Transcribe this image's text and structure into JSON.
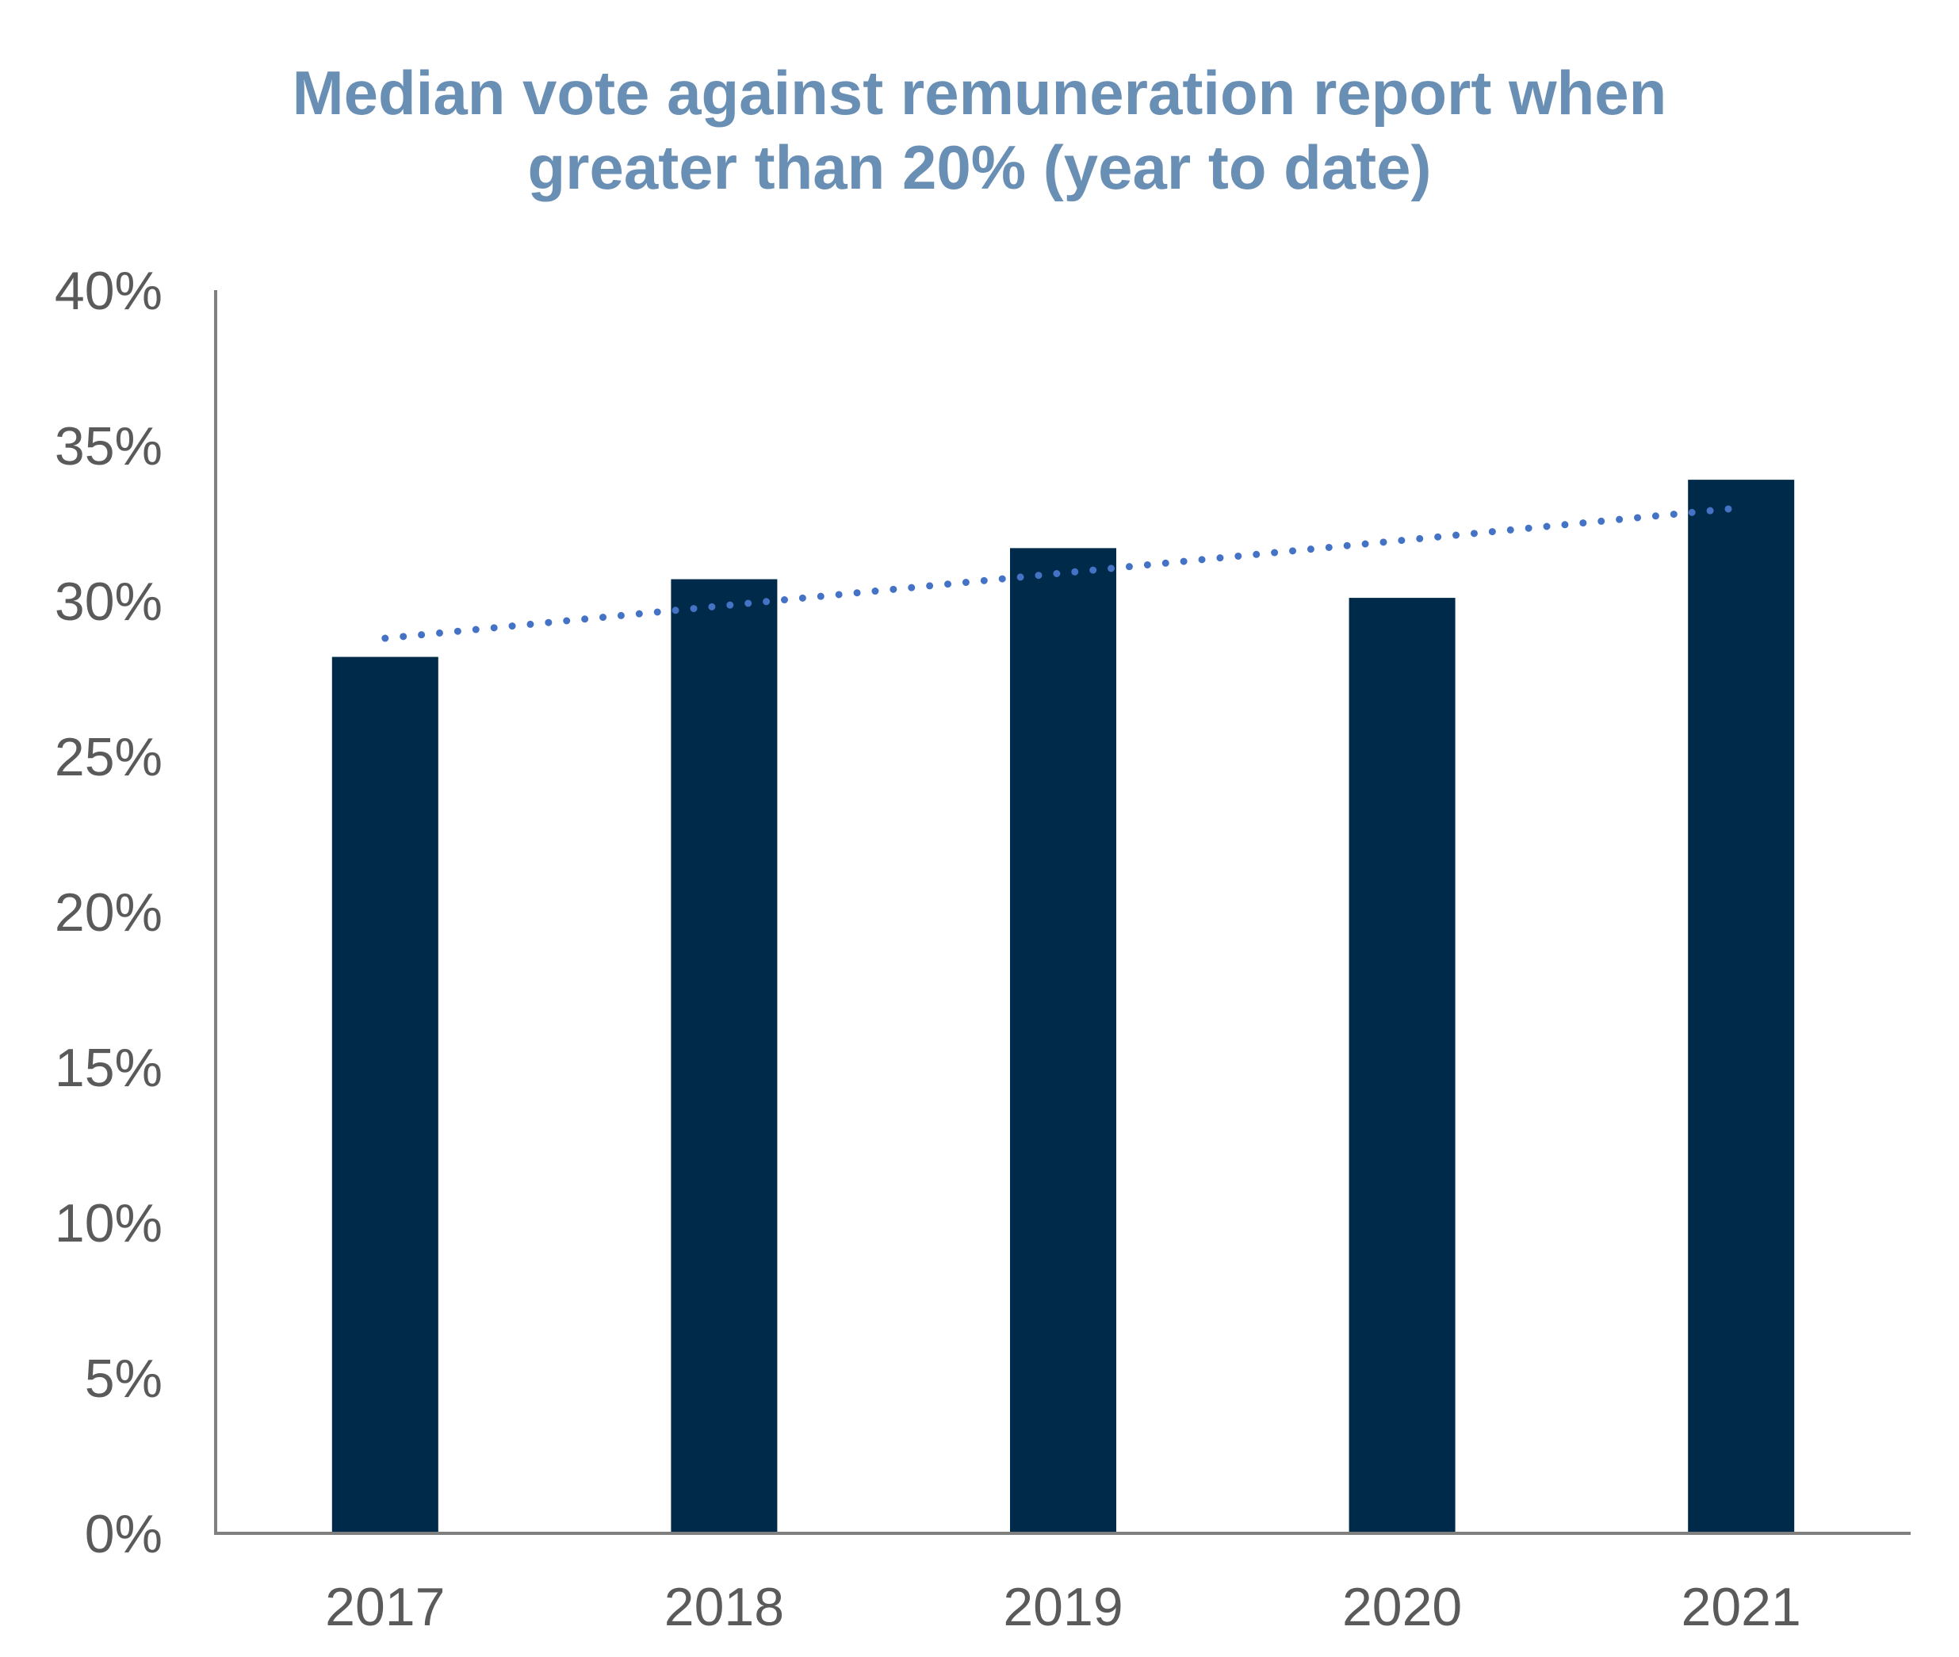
{
  "chart_data": {
    "type": "bar",
    "title": "Median vote against remuneration report when greater than 20% (year to date)",
    "title_lines": [
      "Median vote against remuneration report when",
      "greater than 20% (year to date)"
    ],
    "categories": [
      "2017",
      "2018",
      "2019",
      "2020",
      "2021"
    ],
    "values": [
      28.2,
      30.7,
      31.7,
      30.1,
      33.9
    ],
    "xlabel": "",
    "ylabel": "",
    "ylim": [
      0,
      40
    ],
    "yticks": [
      0,
      5,
      10,
      15,
      20,
      25,
      30,
      35,
      40
    ],
    "ytick_labels": [
      "0%",
      "5%",
      "10%",
      "15%",
      "20%",
      "25%",
      "30%",
      "35%",
      "40%"
    ],
    "trendline": {
      "type": "linear",
      "style": "dotted",
      "start": 28.8,
      "end": 33.0
    },
    "grid": false,
    "legend": "none",
    "colors": {
      "bar": "#002a4a",
      "trendline": "#4472c4",
      "title": "#6a8fb5",
      "axis": "#7f7f7f",
      "tick_text": "#5a5a5a"
    }
  }
}
